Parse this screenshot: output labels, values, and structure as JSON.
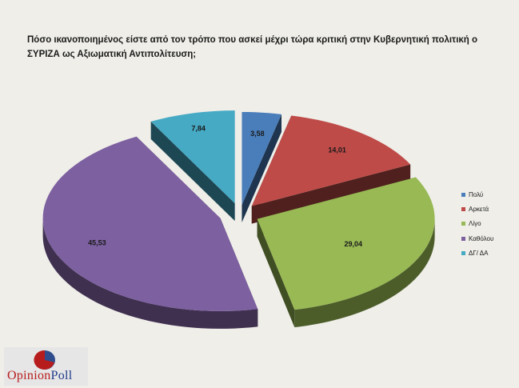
{
  "title": "Πόσο ικανοποιημένος είστε από τον τρόπο που ασκεί μέχρι τώρα κριτική στην Κυβερνητική πολιτική ο ΣΥΡΙΖΑ ως Αξιωματική Αντιπολίτευση;",
  "logo": {
    "part1": "Opinion",
    "part2": "Poll"
  },
  "chart_data": {
    "type": "pie",
    "style": "3d-exploded",
    "title": "Πόσο ικανοποιημένος είστε από τον τρόπο που ασκεί μέχρι τώρα κριτική στην Κυβερνητική πολιτική ο ΣΥΡΙΖΑ ως Αξιωματική Αντιπολίτευση;",
    "legend_position": "right",
    "slices": [
      {
        "label": "Πολύ",
        "value": 3.58,
        "display": "3,58",
        "color": "#4a7ebb"
      },
      {
        "label": "Αρκετά",
        "value": 14.01,
        "display": "14,01",
        "color": "#be4b48"
      },
      {
        "label": "Λίγο",
        "value": 29.04,
        "display": "29,04",
        "color": "#98b954"
      },
      {
        "label": "Καθόλου",
        "value": 45.53,
        "display": "45,53",
        "color": "#7d60a0"
      },
      {
        "label": "ΔΓ/ ΔΑ",
        "value": 7.84,
        "display": "7,84",
        "color": "#46aac5"
      }
    ]
  }
}
